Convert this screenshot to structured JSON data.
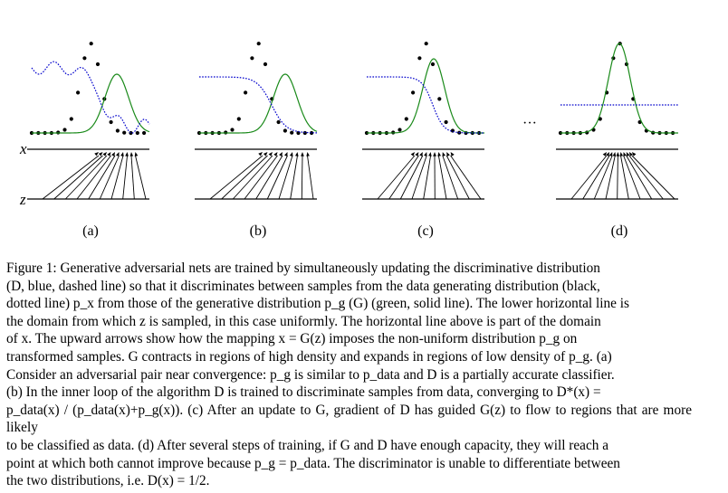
{
  "figure": {
    "panels": [
      {
        "id": "a",
        "label": "(a)"
      },
      {
        "id": "b",
        "label": "(b)"
      },
      {
        "id": "c",
        "label": "(c)"
      },
      {
        "id": "d",
        "label": "(d)"
      }
    ],
    "axis_labels": {
      "x": "x",
      "z": "z"
    },
    "ellipsis": "···",
    "colors": {
      "data_dots": "#000000",
      "generator_line": "#1a8a1a",
      "discriminator_line": "#0000cc",
      "axis_line": "#000000",
      "arrow": "#000000"
    }
  },
  "caption": {
    "lines": [
      "Figure 1: Generative adversarial nets are trained by simultaneously updating the discriminative distribution",
      "(D, blue, dashed line) so that it discriminates between samples from the data generating distribution (black,",
      "dotted line) p_x from those of the generative distribution p_g (G) (green, solid line). The lower horizontal line is",
      "the domain from which z is sampled, in this case uniformly. The horizontal line above is part of the domain",
      "of x. The upward arrows show how the mapping x = G(z) imposes the non-uniform distribution p_g on",
      "transformed samples. G contracts in regions of high density and expands in regions of low density of p_g. (a)",
      "Consider an adversarial pair near convergence: p_g is similar to p_data and D is a partially accurate classifier.",
      "(b) In the inner loop of the algorithm D is trained to discriminate samples from data, converging to D*(x) =",
      "p_data(x) / (p_data(x)+p_g(x)). (c) After an update to G, gradient of D has guided G(z) to flow to regions that are more likely",
      "to be classified as data. (d) After several steps of training, if G and D have enough capacity, they will reach a",
      "point at which both cannot improve because p_g = p_data. The discriminator is unable to differentiate between",
      "the two distributions, i.e. D(x) = 1/2."
    ]
  }
}
